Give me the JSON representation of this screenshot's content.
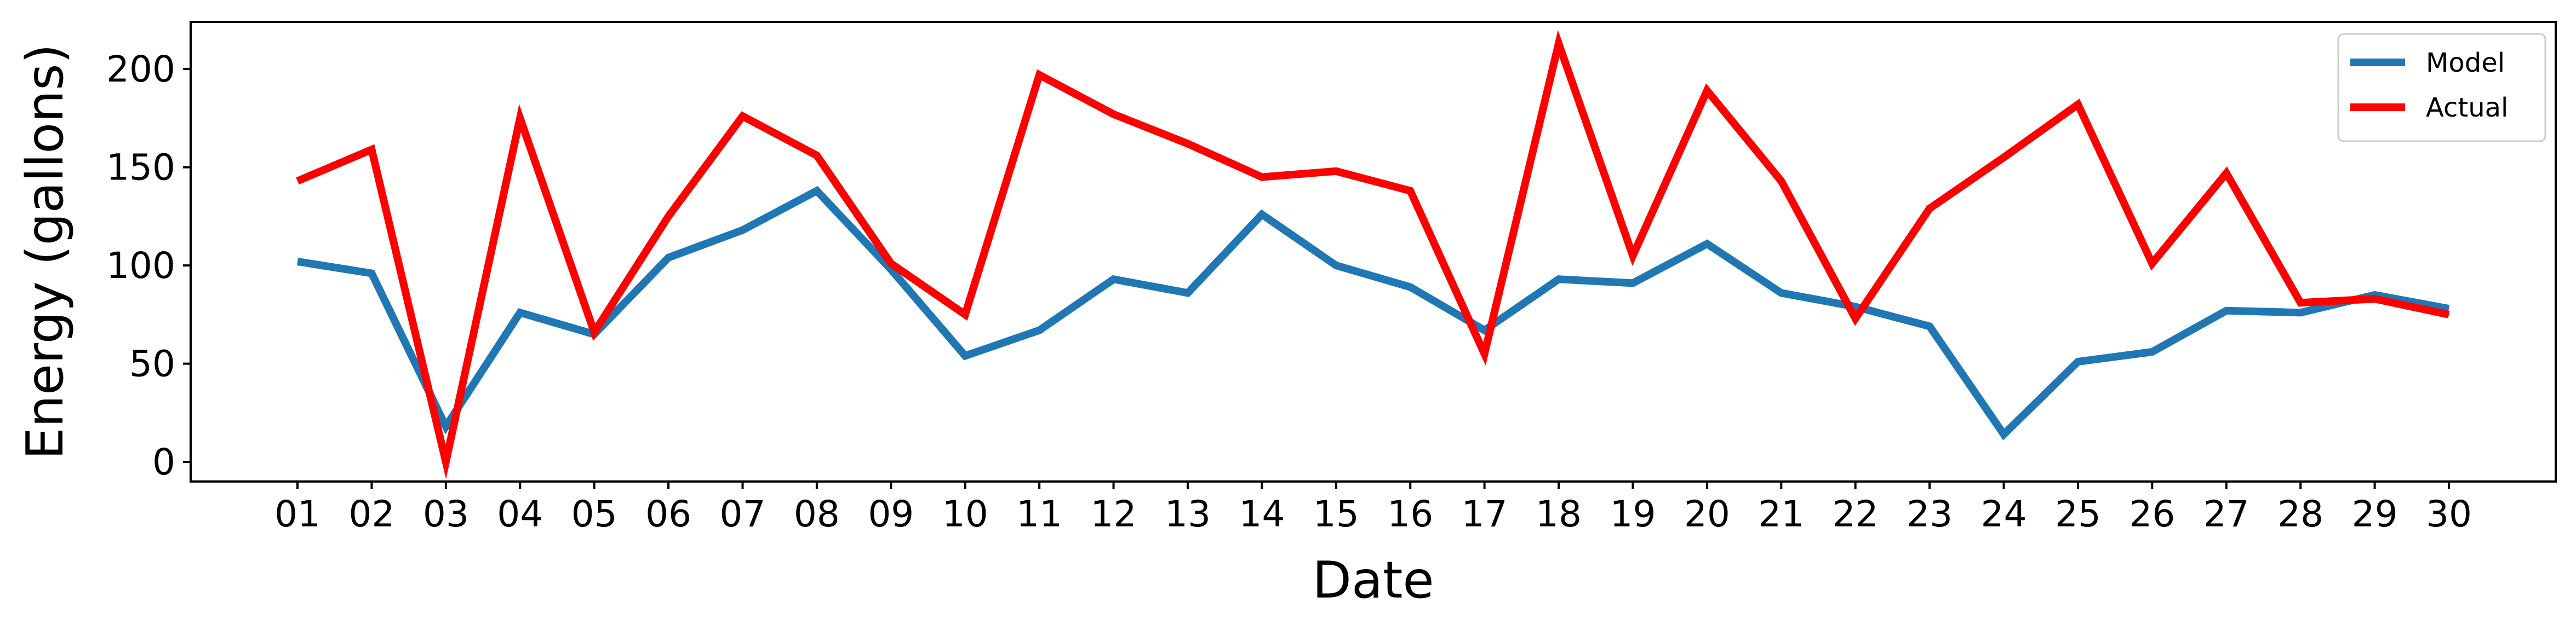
{
  "chart_data": {
    "type": "line",
    "title": "",
    "xlabel": "Date",
    "ylabel": "Energy (gallons)",
    "categories": [
      "01",
      "02",
      "03",
      "04",
      "05",
      "06",
      "07",
      "08",
      "09",
      "10",
      "11",
      "12",
      "13",
      "14",
      "15",
      "16",
      "17",
      "18",
      "19",
      "20",
      "21",
      "22",
      "23",
      "24",
      "25",
      "26",
      "27",
      "28",
      "29",
      "30"
    ],
    "yticks": [
      0,
      50,
      100,
      150,
      200
    ],
    "ylim": [
      -10,
      224
    ],
    "grid": false,
    "legend_position": "top-right",
    "series": [
      {
        "name": "Model",
        "color": "#1f77b4",
        "values": [
          102,
          96,
          18,
          76,
          65,
          104,
          118,
          138,
          98,
          54,
          67,
          93,
          86,
          126,
          100,
          89,
          67,
          93,
          91,
          111,
          86,
          79,
          69,
          14,
          51,
          56,
          77,
          76,
          85,
          78
        ]
      },
      {
        "name": "Actual",
        "color": "#ff0000",
        "values": [
          143,
          159,
          0,
          175,
          66,
          125,
          176,
          156,
          101,
          75,
          197,
          177,
          162,
          145,
          148,
          138,
          55,
          213,
          105,
          189,
          143,
          73,
          129,
          155,
          182,
          101,
          147,
          81,
          83,
          75
        ]
      }
    ]
  }
}
